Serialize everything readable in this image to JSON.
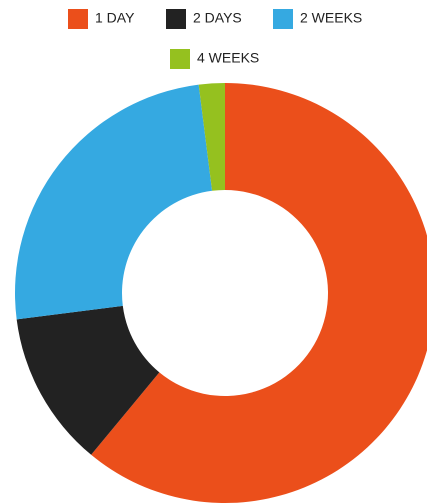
{
  "chart_data": {
    "type": "donut",
    "series": [
      {
        "name": "1 DAY",
        "color": "#eb4f1b",
        "values": [
          61
        ]
      },
      {
        "name": "2 DAYS",
        "color": "#222222",
        "values": [
          12
        ]
      },
      {
        "name": "2 WEEKS",
        "color": "#35a9e1",
        "values": [
          25
        ]
      },
      {
        "name": "4 WEEKS",
        "color": "#95c11f",
        "values": [
          2
        ]
      }
    ],
    "legend": "top"
  }
}
